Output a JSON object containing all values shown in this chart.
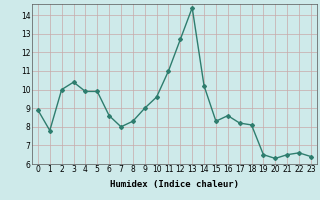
{
  "x": [
    0,
    1,
    2,
    3,
    4,
    5,
    6,
    7,
    8,
    9,
    10,
    11,
    12,
    13,
    14,
    15,
    16,
    17,
    18,
    19,
    20,
    21,
    22,
    23
  ],
  "y": [
    8.9,
    7.8,
    10.0,
    10.4,
    9.9,
    9.9,
    8.6,
    8.0,
    8.3,
    9.0,
    9.6,
    11.0,
    12.7,
    14.4,
    10.2,
    8.3,
    8.6,
    8.2,
    8.1,
    6.5,
    6.3,
    6.5,
    6.6,
    6.4
  ],
  "line_color": "#2e7d6e",
  "marker": "D",
  "marker_size": 2.0,
  "bg_color": "#ceeaea",
  "grid_color": "#c8a8a8",
  "xlabel": "Humidex (Indice chaleur)",
  "ylim": [
    6,
    14.6
  ],
  "yticks": [
    6,
    7,
    8,
    9,
    10,
    11,
    12,
    13,
    14
  ],
  "xticks": [
    0,
    1,
    2,
    3,
    4,
    5,
    6,
    7,
    8,
    9,
    10,
    11,
    12,
    13,
    14,
    15,
    16,
    17,
    18,
    19,
    20,
    21,
    22,
    23
  ],
  "xtick_labels": [
    "0",
    "1",
    "2",
    "3",
    "4",
    "5",
    "6",
    "7",
    "8",
    "9",
    "10",
    "11",
    "12",
    "13",
    "14",
    "15",
    "16",
    "17",
    "18",
    "19",
    "20",
    "21",
    "22",
    "23"
  ],
  "xlabel_fontsize": 6.5,
  "tick_fontsize": 5.5,
  "linewidth": 1.0
}
